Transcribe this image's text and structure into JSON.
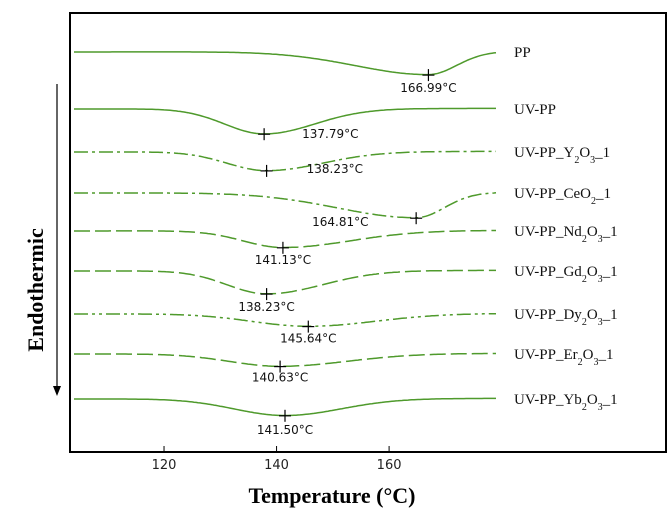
{
  "chart_data": {
    "type": "line",
    "xlabel": "Temperature (°C)",
    "ylabel": "Endothermic",
    "xlim": [
      104,
      179
    ],
    "xticks": [
      120,
      140,
      160
    ],
    "grid": false,
    "series": [
      {
        "name": "PP",
        "label_parts": [
          {
            "t": "PP"
          }
        ],
        "peak_temp": 166.99,
        "peak_label": "166.99°C",
        "dash": "solid",
        "peak_depth": 0.55,
        "width_left": 13,
        "width_right": 5
      },
      {
        "name": "UV-PP",
        "label_parts": [
          {
            "t": "UV-PP"
          }
        ],
        "peak_temp": 137.79,
        "peak_label": "137.79°C",
        "dash": "solid",
        "peak_depth": 0.6,
        "width_left": 7,
        "width_right": 9
      },
      {
        "name": "UV-PP_Y2O3_1",
        "label_parts": [
          {
            "t": "UV-PP_Y"
          },
          {
            "t": "2",
            "sub": true
          },
          {
            "t": "O"
          },
          {
            "t": "3",
            "sub": true
          },
          {
            "t": "_1"
          }
        ],
        "peak_temp": 138.23,
        "peak_label": "138.23°C",
        "dash": "dashdot",
        "peak_depth": 0.45,
        "width_left": 7,
        "width_right": 10
      },
      {
        "name": "UV-PP_CeO2_1",
        "label_parts": [
          {
            "t": "UV-PP_CeO"
          },
          {
            "t": "2",
            "sub": true
          },
          {
            "t": "_1"
          }
        ],
        "peak_temp": 164.81,
        "peak_label": "164.81°C",
        "dash": "dashdot",
        "peak_depth": 0.6,
        "width_left": 14,
        "width_right": 5
      },
      {
        "name": "UV-PP_Nd2O3_1",
        "label_parts": [
          {
            "t": "UV-PP_Nd"
          },
          {
            "t": "2",
            "sub": true
          },
          {
            "t": "O"
          },
          {
            "t": "3",
            "sub": true
          },
          {
            "t": "_1"
          }
        ],
        "peak_temp": 141.13,
        "peak_label": "141.13°C",
        "dash": "longdash",
        "peak_depth": 0.4,
        "width_left": 7,
        "width_right": 12
      },
      {
        "name": "UV-PP_Gd2O3_1",
        "label_parts": [
          {
            "t": "UV-PP_Gd"
          },
          {
            "t": "2",
            "sub": true
          },
          {
            "t": "O"
          },
          {
            "t": "3",
            "sub": true
          },
          {
            "t": "_1"
          }
        ],
        "peak_temp": 138.23,
        "peak_label": "138.23°C",
        "dash": "longdash",
        "peak_depth": 0.55,
        "width_left": 7,
        "width_right": 10
      },
      {
        "name": "UV-PP_Dy2O3_1",
        "label_parts": [
          {
            "t": "UV-PP_Dy"
          },
          {
            "t": "2",
            "sub": true
          },
          {
            "t": "O"
          },
          {
            "t": "3",
            "sub": true
          },
          {
            "t": "_1"
          }
        ],
        "peak_temp": 145.64,
        "peak_label": "145.64°C",
        "dash": "dashdotdot",
        "peak_depth": 0.3,
        "width_left": 10,
        "width_right": 12
      },
      {
        "name": "UV-PP_Er2O3_1",
        "label_parts": [
          {
            "t": "UV-PP_Er"
          },
          {
            "t": "2",
            "sub": true
          },
          {
            "t": "O"
          },
          {
            "t": "3",
            "sub": true
          },
          {
            "t": "_1"
          }
        ],
        "peak_temp": 140.63,
        "peak_label": "140.63°C",
        "dash": "longdash",
        "peak_depth": 0.3,
        "width_left": 9,
        "width_right": 12
      },
      {
        "name": "UV-PP_Yb2O3_1",
        "label_parts": [
          {
            "t": "UV-PP_Yb"
          },
          {
            "t": "2",
            "sub": true
          },
          {
            "t": "O"
          },
          {
            "t": "3",
            "sub": true
          },
          {
            "t": "_1"
          }
        ],
        "peak_temp": 141.5,
        "peak_label": "141.50°C",
        "dash": "solid",
        "peak_depth": 0.4,
        "width_left": 9,
        "width_right": 10
      }
    ]
  },
  "colors": {
    "curve": "#4f9a2c",
    "axis": "#000000",
    "marker": "#000000"
  }
}
